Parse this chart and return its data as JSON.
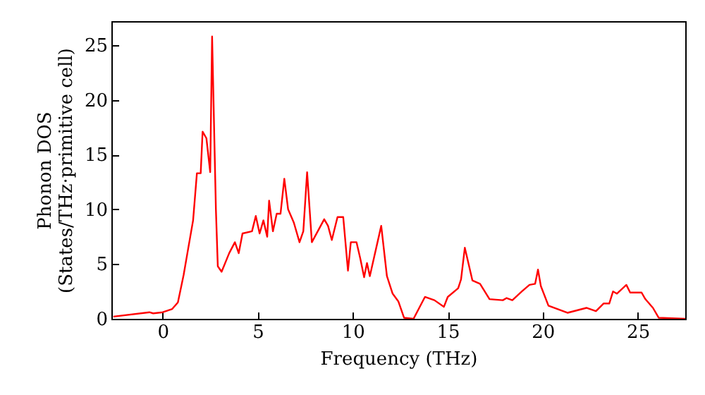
{
  "chart_data": {
    "type": "line",
    "xlabel": "Frequency (THz)",
    "ylabel": "Phonon DOS\n(States/THz·primitive cell)",
    "xlim": [
      -2.7,
      27.5
    ],
    "ylim": [
      0,
      27.2
    ],
    "xticks": [
      0,
      5,
      10,
      15,
      20,
      25
    ],
    "yticks": [
      0,
      5,
      10,
      15,
      20,
      25
    ],
    "grid": false,
    "series": [
      {
        "color": "#ff0000",
        "x": [
          -2.6,
          -0.7,
          -0.5,
          0,
          0.5,
          0.8,
          1.1,
          1.3,
          1.6,
          1.8,
          2.0,
          2.1,
          2.3,
          2.5,
          2.6,
          2.8,
          2.9,
          3.1,
          3.5,
          3.8,
          4.0,
          4.2,
          4.7,
          4.9,
          5.1,
          5.3,
          5.5,
          5.6,
          5.8,
          6.0,
          6.2,
          6.4,
          6.6,
          6.9,
          7.2,
          7.4,
          7.6,
          7.85,
          8.5,
          8.7,
          8.9,
          9.2,
          9.5,
          9.75,
          9.9,
          10.2,
          10.4,
          10.6,
          10.75,
          10.9,
          11.5,
          11.8,
          12.1,
          12.4,
          12.7,
          13.2,
          13.8,
          14.3,
          14.8,
          15.0,
          15.55,
          15.7,
          15.9,
          16.3,
          16.7,
          17.2,
          17.9,
          18.1,
          18.4,
          18.9,
          19.3,
          19.6,
          19.75,
          19.9,
          20.3,
          21.3,
          22.3,
          22.8,
          23.2,
          23.5,
          23.7,
          23.9,
          24.4,
          24.6,
          25.2,
          25.4,
          25.8,
          26.1,
          27.5
        ],
        "values": [
          0.2,
          0.6,
          0.5,
          0.6,
          0.9,
          1.5,
          4,
          6,
          9,
          13.3,
          13.3,
          17.1,
          16.5,
          13.4,
          25.8,
          10,
          4.8,
          4.3,
          6,
          7,
          6,
          7.8,
          8,
          9.4,
          7.8,
          9,
          7.5,
          10.8,
          8,
          9.6,
          9.6,
          12.8,
          10,
          8.8,
          7,
          8,
          13.4,
          7.0,
          9.1,
          8.5,
          7.2,
          9.3,
          9.3,
          4.4,
          7.0,
          7,
          5.5,
          3.8,
          5.1,
          3.9,
          8.5,
          3.9,
          2.3,
          1.6,
          0.1,
          0,
          2.0,
          1.7,
          1.1,
          2.0,
          2.8,
          3.6,
          6.5,
          3.5,
          3.2,
          1.8,
          1.7,
          1.9,
          1.7,
          2.5,
          3.1,
          3.2,
          4.5,
          3.0,
          1.2,
          0.55,
          1.0,
          0.7,
          1.4,
          1.4,
          2.5,
          2.3,
          3.1,
          2.4,
          2.4,
          1.8,
          1.0,
          0.1,
          0
        ]
      }
    ]
  }
}
